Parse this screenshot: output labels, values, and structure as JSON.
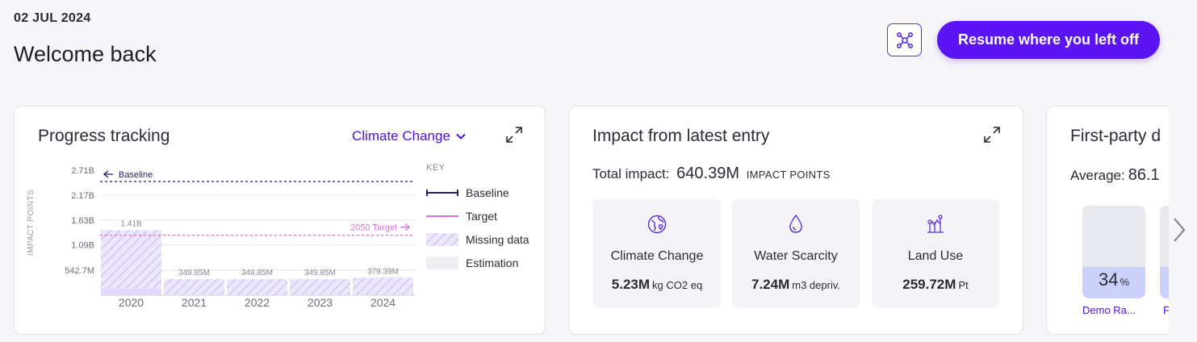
{
  "header": {
    "date": "02 JUL 2024",
    "greeting": "Welcome back",
    "resume_label": "Resume where you left off"
  },
  "progress": {
    "title": "Progress tracking",
    "dropdown_value": "Climate Change",
    "key": {
      "heading": "KEY",
      "items": [
        "Baseline",
        "Target",
        "Missing data",
        "Estimation"
      ]
    }
  },
  "chart_data": {
    "type": "bar",
    "ylabel": "IMPACT POINTS",
    "yticks": [
      "2.71B",
      "2.17B",
      "1.63B",
      "1.09B",
      "542.7M"
    ],
    "ytick_values": [
      2710000000,
      2170000000,
      1630000000,
      1090000000,
      542700000
    ],
    "categories": [
      "2020",
      "2021",
      "2022",
      "2023",
      "2024"
    ],
    "values": [
      1410000000,
      349850000,
      349850000,
      349850000,
      379390000
    ],
    "value_labels": [
      "1.41B",
      "349.85M",
      "349.85M",
      "349.85M",
      "379.39M"
    ],
    "baseline": {
      "label": "Baseline",
      "value": 2710000000
    },
    "target": {
      "label": "2050 Target",
      "value": 1300000000
    },
    "ylim": [
      0,
      2850000000
    ],
    "colors": {
      "missing": "#d7cdf6",
      "baseline": "#2b1a5e",
      "target": "#e06adf",
      "estimation": "#efeef3"
    }
  },
  "impact": {
    "title": "Impact from latest entry",
    "total_label": "Total impact:",
    "total_value": "640.39M",
    "total_unit": "IMPACT POINTS",
    "tiles": [
      {
        "name": "Climate Change",
        "value": "5.23M",
        "unit": "kg CO2 eq",
        "icon": "globe-icon"
      },
      {
        "name": "Water Scarcity",
        "value": "7.24M",
        "unit": "m3 depriv.",
        "icon": "droplet-icon"
      },
      {
        "name": "Land Use",
        "value": "259.72M",
        "unit": "Pt",
        "icon": "plants-icon"
      }
    ]
  },
  "firstparty": {
    "title": "First-party d",
    "average_label": "Average:",
    "average_value": "86.1",
    "pills": [
      {
        "percent": 34,
        "percent_text": "34",
        "label": "Demo Ra..."
      },
      {
        "percent": 34,
        "percent_text": "",
        "label": "Fo"
      }
    ]
  },
  "accent": "#5b14f2"
}
